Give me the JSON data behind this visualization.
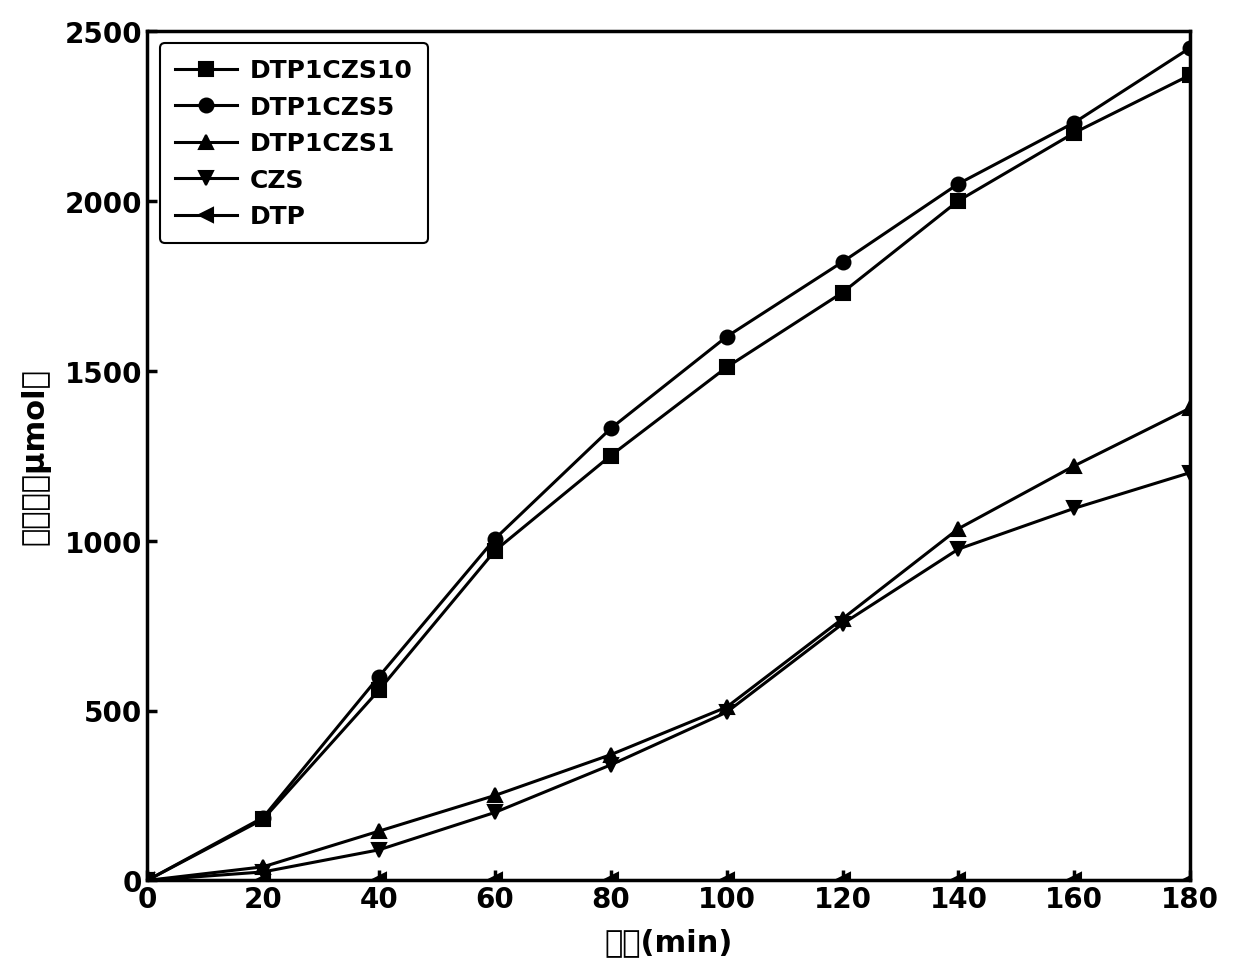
{
  "x": [
    0,
    20,
    40,
    60,
    80,
    100,
    120,
    140,
    160,
    180
  ],
  "series": {
    "DTP1CZS10": [
      0,
      180,
      560,
      970,
      1250,
      1510,
      1730,
      2000,
      2200,
      2370
    ],
    "DTP1CZS5": [
      0,
      185,
      600,
      1005,
      1330,
      1600,
      1820,
      2050,
      2230,
      2450
    ],
    "DTP1CZS1": [
      0,
      40,
      145,
      250,
      370,
      510,
      770,
      1035,
      1220,
      1390
    ],
    "CZS": [
      0,
      25,
      90,
      200,
      340,
      495,
      755,
      975,
      1095,
      1200
    ],
    "DTP": [
      0,
      0,
      0,
      0,
      0,
      0,
      0,
      0,
      0,
      0
    ]
  },
  "markers": {
    "DTP1CZS10": "s",
    "DTP1CZS5": "o",
    "DTP1CZS1": "^",
    "CZS": "v",
    "DTP": "<"
  },
  "ylabel": "产氢量（μmol）",
  "xlabel": "时间(min)",
  "ylim": [
    0,
    2500
  ],
  "xlim": [
    0,
    180
  ],
  "yticks": [
    0,
    500,
    1000,
    1500,
    2000,
    2500
  ],
  "xticks": [
    0,
    20,
    40,
    60,
    80,
    100,
    120,
    140,
    160,
    180
  ],
  "linewidth": 2.2,
  "markersize": 10,
  "legend_order": [
    "DTP1CZS10",
    "DTP1CZS5",
    "DTP1CZS1",
    "CZS",
    "DTP"
  ]
}
